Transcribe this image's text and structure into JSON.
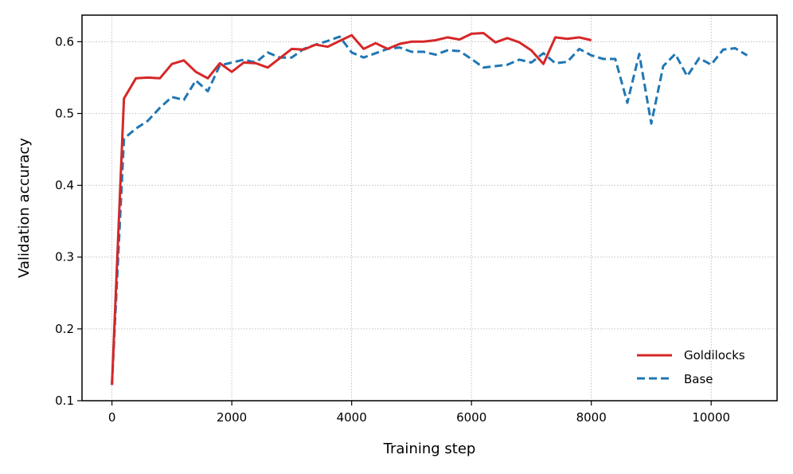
{
  "chart_data": {
    "type": "line",
    "xlabel": "Training step",
    "ylabel": "Validation accuracy",
    "xlim": [
      -500,
      11100
    ],
    "ylim": [
      0.1,
      0.637
    ],
    "xticks": [
      0,
      2000,
      4000,
      6000,
      8000,
      10000
    ],
    "yticks": [
      0.1,
      0.2,
      0.3,
      0.4,
      0.5,
      0.6
    ],
    "xtick_labels": [
      "0",
      "2000",
      "4000",
      "6000",
      "8000",
      "10000"
    ],
    "ytick_labels": [
      "0.1",
      "0.2",
      "0.3",
      "0.4",
      "0.5",
      "0.6"
    ],
    "grid": true,
    "legend_position": "bottom-right",
    "series": [
      {
        "name": "Goldilocks",
        "color": "#d62728",
        "style": "solid",
        "x": [
          0,
          200,
          400,
          600,
          800,
          1000,
          1200,
          1400,
          1600,
          1800,
          2000,
          2200,
          2400,
          2600,
          2800,
          3000,
          3200,
          3400,
          3600,
          3800,
          4000,
          4200,
          4400,
          4600,
          4800,
          5000,
          5200,
          5400,
          5600,
          5800,
          6000,
          6200,
          6400,
          6600,
          6800,
          7000,
          7200,
          7400,
          7600,
          7800,
          8000
        ],
        "y": [
          0.122,
          0.521,
          0.549,
          0.55,
          0.549,
          0.569,
          0.574,
          0.558,
          0.549,
          0.57,
          0.558,
          0.571,
          0.57,
          0.564,
          0.577,
          0.59,
          0.589,
          0.596,
          0.593,
          0.601,
          0.609,
          0.59,
          0.598,
          0.59,
          0.597,
          0.6,
          0.6,
          0.602,
          0.606,
          0.603,
          0.611,
          0.612,
          0.599,
          0.605,
          0.599,
          0.588,
          0.569,
          0.606,
          0.604,
          0.606,
          0.602
        ]
      },
      {
        "name": "Base",
        "color": "#1f77b4",
        "style": "dashed",
        "x": [
          0,
          200,
          400,
          600,
          800,
          1000,
          1200,
          1400,
          1600,
          1800,
          2000,
          2200,
          2400,
          2600,
          2800,
          3000,
          3200,
          3400,
          3600,
          3800,
          4000,
          4200,
          4400,
          4600,
          4800,
          5000,
          5200,
          5400,
          5600,
          5800,
          6000,
          6200,
          6400,
          6600,
          6800,
          7000,
          7200,
          7400,
          7600,
          7800,
          8000,
          8200,
          8400,
          8600,
          8800,
          9000,
          9200,
          9400,
          9600,
          9800,
          10000,
          10200,
          10400,
          10600
        ],
        "y": [
          0.122,
          0.465,
          0.479,
          0.49,
          0.508,
          0.523,
          0.519,
          0.546,
          0.531,
          0.567,
          0.571,
          0.575,
          0.571,
          0.585,
          0.578,
          0.578,
          0.59,
          0.596,
          0.601,
          0.607,
          0.585,
          0.578,
          0.584,
          0.59,
          0.592,
          0.586,
          0.586,
          0.582,
          0.588,
          0.587,
          0.576,
          0.564,
          0.566,
          0.568,
          0.575,
          0.571,
          0.584,
          0.57,
          0.572,
          0.59,
          0.581,
          0.576,
          0.576,
          0.515,
          0.583,
          0.486,
          0.566,
          0.583,
          0.552,
          0.577,
          0.568,
          0.589,
          0.591,
          0.581
        ]
      }
    ]
  }
}
